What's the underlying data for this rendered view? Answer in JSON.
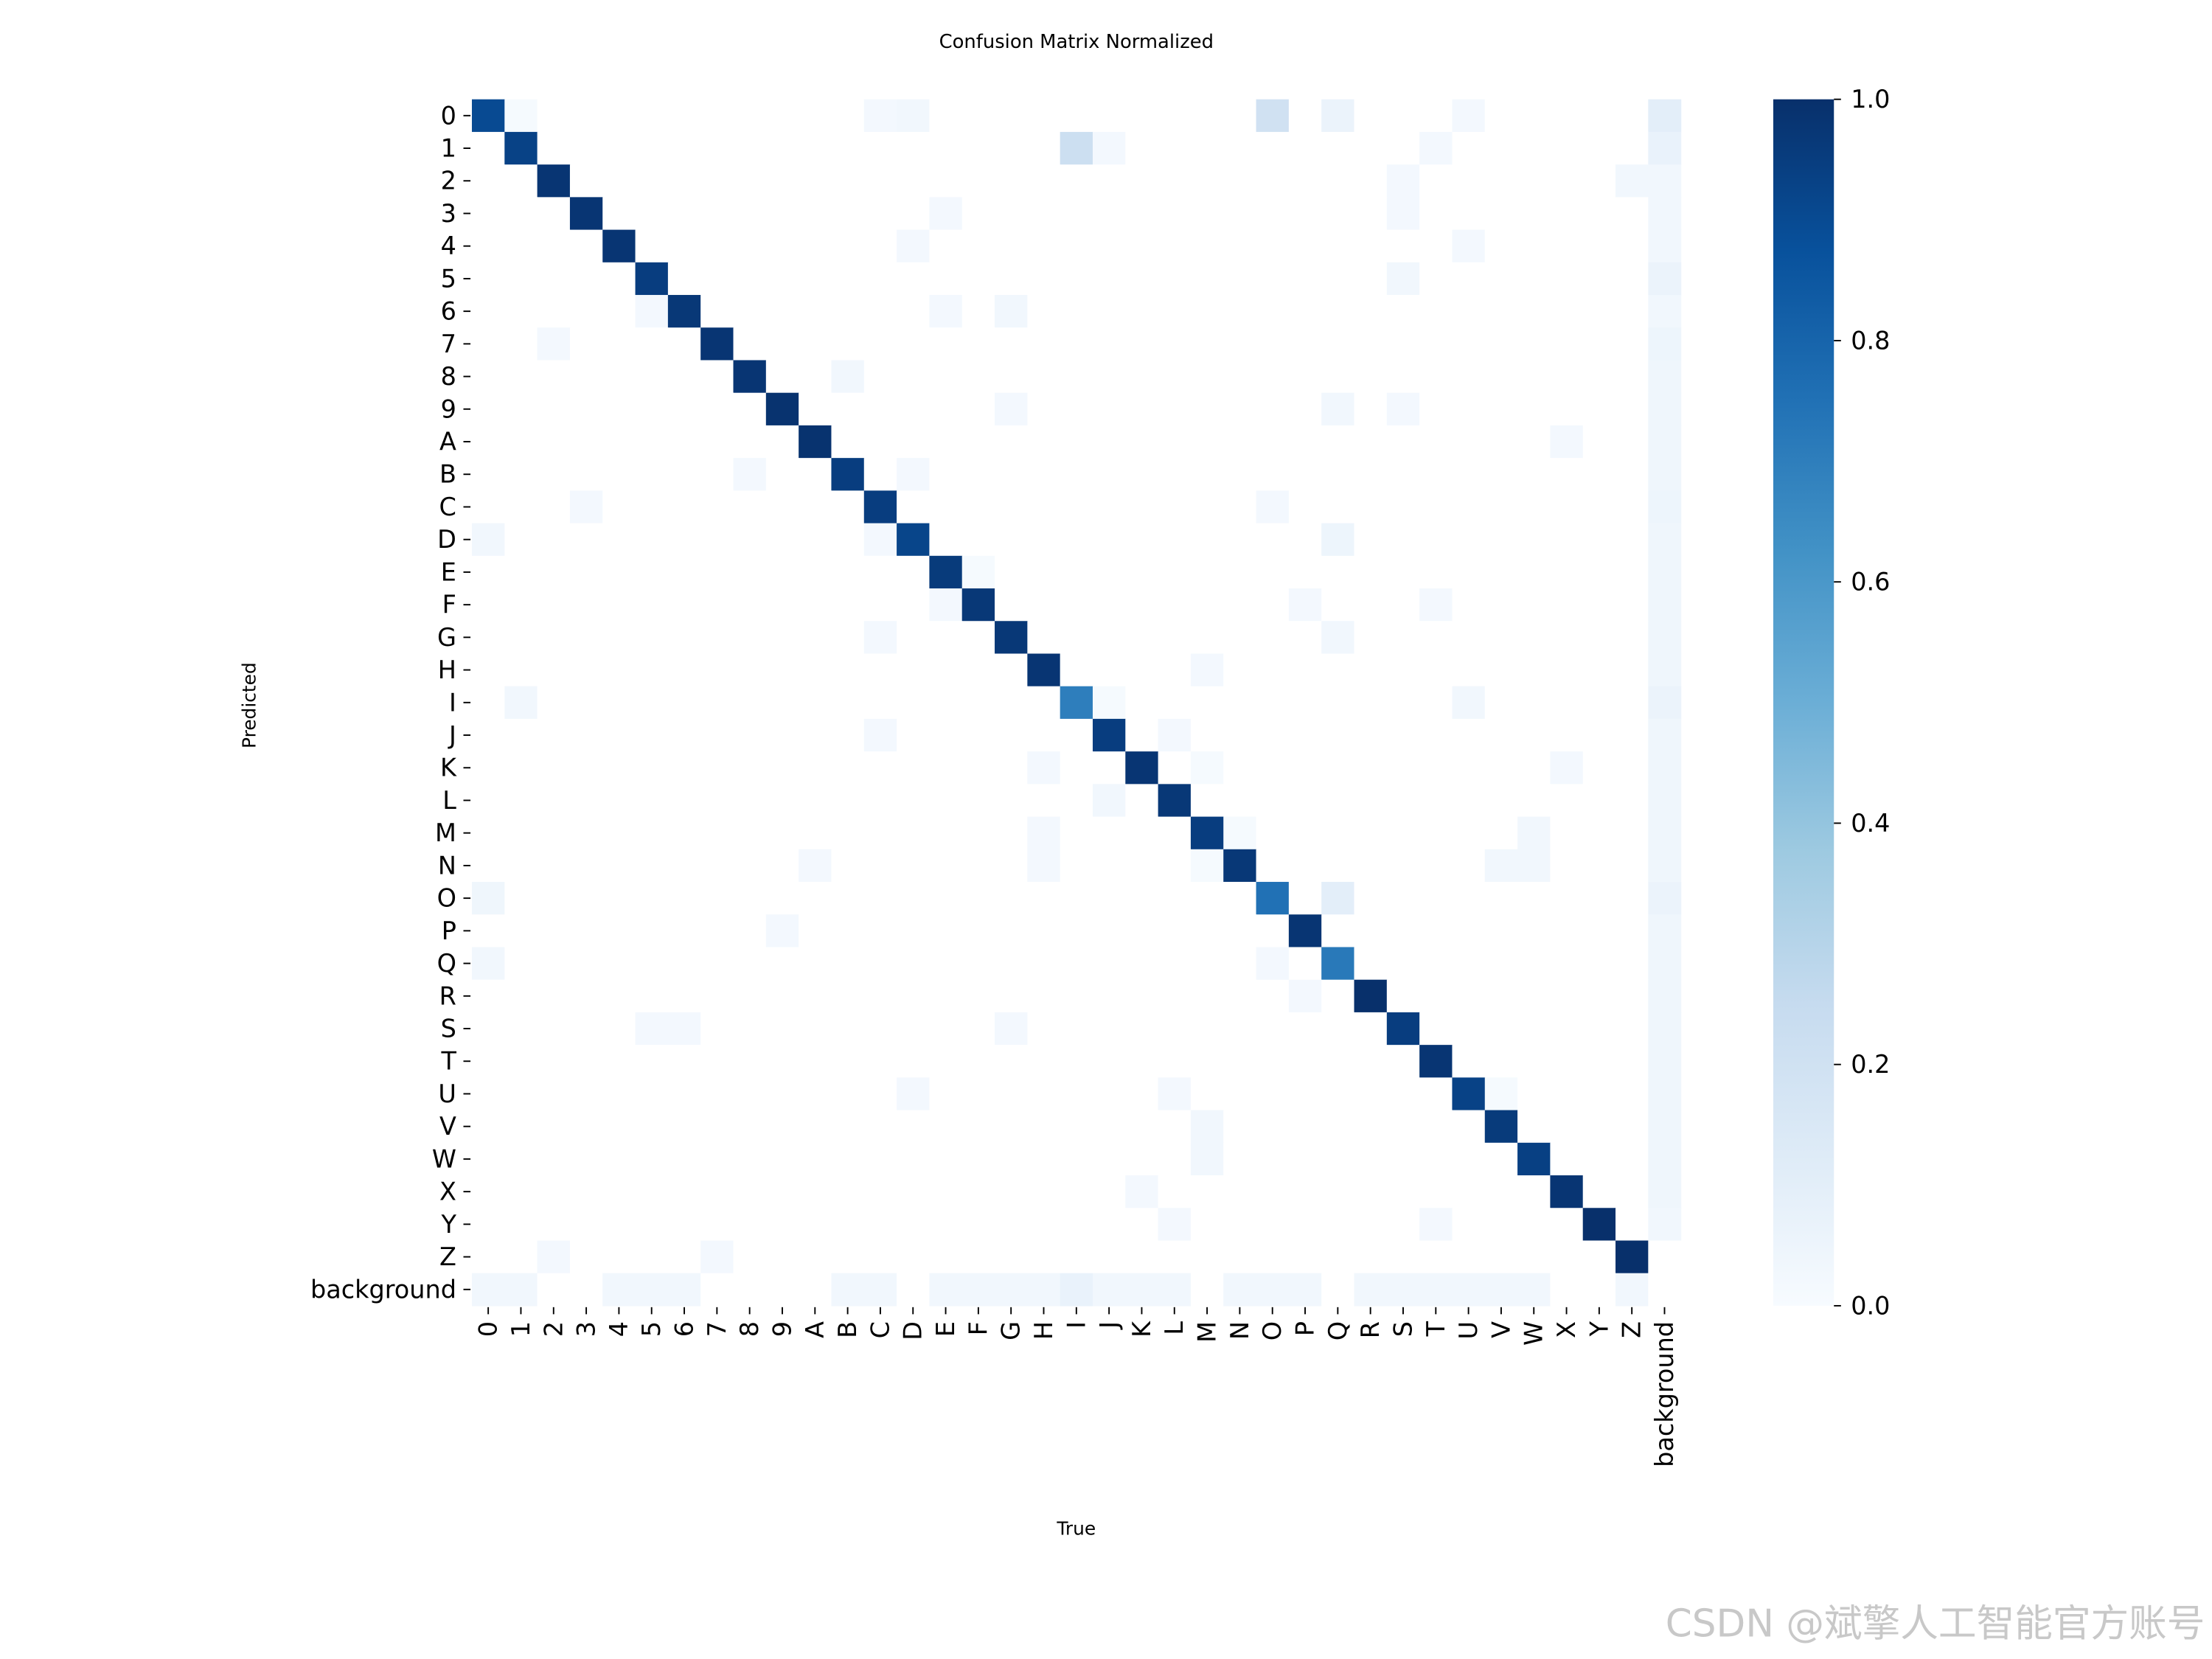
{
  "chart_data": {
    "type": "heatmap",
    "title": "Confusion Matrix Normalized",
    "x_label": "True",
    "y_label": "Predicted",
    "categories": [
      "0",
      "1",
      "2",
      "3",
      "4",
      "5",
      "6",
      "7",
      "8",
      "9",
      "A",
      "B",
      "C",
      "D",
      "E",
      "F",
      "G",
      "H",
      "I",
      "J",
      "K",
      "L",
      "M",
      "N",
      "O",
      "P",
      "Q",
      "R",
      "S",
      "T",
      "U",
      "V",
      "W",
      "X",
      "Y",
      "Z",
      "background"
    ],
    "values": [
      [
        0.9,
        0.01,
        0,
        0,
        0,
        0,
        0,
        0,
        0,
        0,
        0,
        0,
        0.02,
        0.03,
        0,
        0,
        0,
        0,
        0,
        0,
        0,
        0,
        0,
        0,
        0.2,
        0,
        0.06,
        0,
        0,
        0,
        0.02,
        0,
        0,
        0,
        0,
        0,
        0.1
      ],
      [
        0,
        0.93,
        0,
        0,
        0,
        0,
        0,
        0,
        0,
        0,
        0,
        0,
        0,
        0,
        0,
        0,
        0,
        0,
        0.22,
        0.02,
        0,
        0,
        0,
        0,
        0,
        0,
        0,
        0,
        0,
        0.02,
        0,
        0,
        0,
        0,
        0,
        0,
        0.07
      ],
      [
        0,
        0,
        0.98,
        0,
        0,
        0,
        0,
        0,
        0,
        0,
        0,
        0,
        0,
        0,
        0,
        0,
        0,
        0,
        0,
        0,
        0,
        0,
        0,
        0,
        0,
        0,
        0,
        0,
        0.02,
        0,
        0,
        0,
        0,
        0,
        0,
        0.03,
        0.03
      ],
      [
        0,
        0,
        0,
        0.98,
        0,
        0,
        0,
        0,
        0,
        0,
        0,
        0,
        0,
        0,
        0.02,
        0,
        0,
        0,
        0,
        0,
        0,
        0,
        0,
        0,
        0,
        0,
        0,
        0,
        0.02,
        0,
        0,
        0,
        0,
        0,
        0,
        0,
        0.03
      ],
      [
        0,
        0,
        0,
        0,
        0.98,
        0,
        0,
        0,
        0,
        0,
        0,
        0,
        0,
        0.02,
        0,
        0,
        0,
        0,
        0,
        0,
        0,
        0,
        0,
        0,
        0,
        0,
        0,
        0,
        0,
        0,
        0.02,
        0,
        0,
        0,
        0,
        0,
        0.03
      ],
      [
        0,
        0,
        0,
        0,
        0,
        0.95,
        0,
        0,
        0,
        0,
        0,
        0,
        0,
        0,
        0,
        0,
        0,
        0,
        0,
        0,
        0,
        0,
        0,
        0,
        0,
        0,
        0,
        0,
        0.03,
        0,
        0,
        0,
        0,
        0,
        0,
        0,
        0.06
      ],
      [
        0,
        0,
        0,
        0,
        0,
        0.02,
        0.97,
        0,
        0,
        0,
        0,
        0,
        0,
        0,
        0.02,
        0,
        0.03,
        0,
        0,
        0,
        0,
        0,
        0,
        0,
        0,
        0,
        0,
        0,
        0,
        0,
        0,
        0,
        0,
        0,
        0,
        0,
        0.03
      ],
      [
        0,
        0,
        0.02,
        0,
        0,
        0,
        0,
        0.98,
        0,
        0,
        0,
        0,
        0,
        0,
        0,
        0,
        0,
        0,
        0,
        0,
        0,
        0,
        0,
        0,
        0,
        0,
        0,
        0,
        0,
        0,
        0,
        0,
        0,
        0,
        0,
        0,
        0.05
      ],
      [
        0,
        0,
        0,
        0,
        0,
        0,
        0,
        0,
        0.98,
        0,
        0,
        0.03,
        0,
        0,
        0,
        0,
        0,
        0,
        0,
        0,
        0,
        0,
        0,
        0,
        0,
        0,
        0,
        0,
        0,
        0,
        0,
        0,
        0,
        0,
        0,
        0,
        0.04
      ],
      [
        0,
        0,
        0,
        0,
        0,
        0,
        0,
        0,
        0,
        0.99,
        0,
        0,
        0,
        0,
        0,
        0,
        0.02,
        0,
        0,
        0,
        0,
        0,
        0,
        0,
        0,
        0,
        0.03,
        0,
        0.02,
        0,
        0,
        0,
        0,
        0,
        0,
        0,
        0.04
      ],
      [
        0,
        0,
        0,
        0,
        0,
        0,
        0,
        0,
        0,
        0,
        0.99,
        0,
        0,
        0,
        0,
        0,
        0,
        0,
        0,
        0,
        0,
        0,
        0,
        0,
        0,
        0,
        0,
        0,
        0,
        0,
        0,
        0,
        0,
        0.02,
        0,
        0,
        0.04
      ],
      [
        0,
        0,
        0,
        0,
        0,
        0,
        0,
        0,
        0.02,
        0,
        0,
        0.95,
        0,
        0.02,
        0,
        0,
        0,
        0,
        0,
        0,
        0,
        0,
        0,
        0,
        0,
        0,
        0,
        0,
        0,
        0,
        0,
        0,
        0,
        0,
        0,
        0,
        0.04
      ],
      [
        0,
        0,
        0,
        0.02,
        0,
        0,
        0,
        0,
        0,
        0,
        0,
        0,
        0.95,
        0,
        0,
        0,
        0,
        0,
        0,
        0,
        0,
        0,
        0,
        0,
        0.02,
        0,
        0,
        0,
        0,
        0,
        0,
        0,
        0,
        0,
        0,
        0,
        0.05
      ],
      [
        0.03,
        0,
        0,
        0,
        0,
        0,
        0,
        0,
        0,
        0,
        0,
        0,
        0.02,
        0.92,
        0,
        0,
        0,
        0,
        0,
        0,
        0,
        0,
        0,
        0,
        0,
        0,
        0.05,
        0,
        0,
        0,
        0,
        0,
        0,
        0,
        0,
        0,
        0.04
      ],
      [
        0,
        0,
        0,
        0,
        0,
        0,
        0,
        0,
        0,
        0,
        0,
        0,
        0,
        0,
        0.96,
        0.01,
        0,
        0,
        0,
        0,
        0,
        0,
        0,
        0,
        0,
        0,
        0,
        0,
        0,
        0,
        0,
        0,
        0,
        0,
        0,
        0,
        0.04
      ],
      [
        0,
        0,
        0,
        0,
        0,
        0,
        0,
        0,
        0,
        0,
        0,
        0,
        0,
        0,
        0.02,
        0.97,
        0,
        0,
        0,
        0,
        0,
        0,
        0,
        0,
        0,
        0.02,
        0,
        0,
        0,
        0.02,
        0,
        0,
        0,
        0,
        0,
        0,
        0.04
      ],
      [
        0,
        0,
        0,
        0,
        0,
        0,
        0,
        0,
        0,
        0,
        0,
        0,
        0.02,
        0,
        0,
        0,
        0.97,
        0,
        0,
        0,
        0,
        0,
        0,
        0,
        0,
        0,
        0.03,
        0,
        0,
        0,
        0,
        0,
        0,
        0,
        0,
        0,
        0.04
      ],
      [
        0,
        0,
        0,
        0,
        0,
        0,
        0,
        0,
        0,
        0,
        0,
        0,
        0,
        0,
        0,
        0,
        0,
        0.98,
        0,
        0,
        0,
        0,
        0.02,
        0,
        0,
        0,
        0,
        0,
        0,
        0,
        0,
        0,
        0,
        0,
        0,
        0,
        0.04
      ],
      [
        0,
        0.03,
        0,
        0,
        0,
        0,
        0,
        0,
        0,
        0,
        0,
        0,
        0,
        0,
        0,
        0,
        0,
        0,
        0.7,
        0.01,
        0,
        0,
        0,
        0,
        0,
        0,
        0,
        0,
        0,
        0,
        0.03,
        0,
        0,
        0,
        0,
        0,
        0.06
      ],
      [
        0,
        0,
        0,
        0,
        0,
        0,
        0,
        0,
        0,
        0,
        0,
        0,
        0.02,
        0,
        0,
        0,
        0,
        0,
        0,
        0.95,
        0,
        0.02,
        0,
        0,
        0,
        0,
        0,
        0,
        0,
        0,
        0,
        0,
        0,
        0,
        0,
        0,
        0.04
      ],
      [
        0,
        0,
        0,
        0,
        0,
        0,
        0,
        0,
        0,
        0,
        0,
        0,
        0,
        0,
        0,
        0,
        0,
        0.02,
        0,
        0,
        0.98,
        0,
        0.01,
        0,
        0,
        0,
        0,
        0,
        0,
        0,
        0,
        0,
        0,
        0.02,
        0,
        0,
        0.04
      ],
      [
        0,
        0,
        0,
        0,
        0,
        0,
        0,
        0,
        0,
        0,
        0,
        0,
        0,
        0,
        0,
        0,
        0,
        0,
        0,
        0.03,
        0,
        0.97,
        0,
        0,
        0,
        0,
        0,
        0,
        0,
        0,
        0,
        0,
        0,
        0,
        0,
        0,
        0.04
      ],
      [
        0,
        0,
        0,
        0,
        0,
        0,
        0,
        0,
        0,
        0,
        0,
        0,
        0,
        0,
        0,
        0,
        0,
        0.02,
        0,
        0,
        0,
        0,
        0.95,
        0.01,
        0,
        0,
        0,
        0,
        0,
        0,
        0,
        0,
        0.03,
        0,
        0,
        0,
        0.04
      ],
      [
        0,
        0,
        0,
        0,
        0,
        0,
        0,
        0,
        0,
        0,
        0.02,
        0,
        0,
        0,
        0,
        0,
        0,
        0.02,
        0,
        0,
        0,
        0,
        0.01,
        0.97,
        0,
        0,
        0,
        0,
        0,
        0,
        0,
        0.03,
        0.03,
        0,
        0,
        0,
        0.04
      ],
      [
        0.04,
        0,
        0,
        0,
        0,
        0,
        0,
        0,
        0,
        0,
        0,
        0,
        0,
        0,
        0,
        0,
        0,
        0,
        0,
        0,
        0,
        0,
        0,
        0,
        0.75,
        0,
        0.1,
        0,
        0,
        0,
        0,
        0,
        0,
        0,
        0,
        0,
        0.06
      ],
      [
        0,
        0,
        0,
        0,
        0,
        0,
        0,
        0,
        0,
        0.02,
        0,
        0,
        0,
        0,
        0,
        0,
        0,
        0,
        0,
        0,
        0,
        0,
        0,
        0,
        0,
        0.98,
        0,
        0,
        0,
        0,
        0,
        0,
        0,
        0,
        0,
        0,
        0.04
      ],
      [
        0.03,
        0,
        0,
        0,
        0,
        0,
        0,
        0,
        0,
        0,
        0,
        0,
        0,
        0,
        0,
        0,
        0,
        0,
        0,
        0,
        0,
        0,
        0,
        0,
        0.02,
        0,
        0.72,
        0,
        0,
        0,
        0,
        0,
        0,
        0,
        0,
        0,
        0.04
      ],
      [
        0,
        0,
        0,
        0,
        0,
        0,
        0,
        0,
        0,
        0,
        0,
        0,
        0,
        0,
        0,
        0,
        0,
        0,
        0,
        0,
        0,
        0,
        0,
        0,
        0,
        0.02,
        0,
        1.0,
        0,
        0,
        0,
        0,
        0,
        0,
        0,
        0,
        0.04
      ],
      [
        0,
        0,
        0,
        0,
        0,
        0.02,
        0.02,
        0,
        0,
        0,
        0,
        0,
        0,
        0,
        0,
        0,
        0.02,
        0,
        0,
        0,
        0,
        0,
        0,
        0,
        0,
        0,
        0,
        0,
        0.95,
        0,
        0,
        0,
        0,
        0,
        0,
        0,
        0.04
      ],
      [
        0,
        0,
        0,
        0,
        0,
        0,
        0,
        0,
        0,
        0,
        0,
        0,
        0,
        0,
        0,
        0,
        0,
        0,
        0,
        0,
        0,
        0,
        0,
        0,
        0,
        0,
        0,
        0,
        0,
        0.98,
        0,
        0,
        0,
        0,
        0,
        0,
        0.04
      ],
      [
        0,
        0,
        0,
        0,
        0,
        0,
        0,
        0,
        0,
        0,
        0,
        0,
        0,
        0.02,
        0,
        0,
        0,
        0,
        0,
        0,
        0,
        0.02,
        0,
        0,
        0,
        0,
        0,
        0,
        0,
        0,
        0.93,
        0.01,
        0,
        0,
        0,
        0,
        0.04
      ],
      [
        0,
        0,
        0,
        0,
        0,
        0,
        0,
        0,
        0,
        0,
        0,
        0,
        0,
        0,
        0,
        0,
        0,
        0,
        0,
        0,
        0,
        0,
        0.03,
        0,
        0,
        0,
        0,
        0,
        0,
        0,
        0,
        0.96,
        0,
        0,
        0,
        0,
        0.04
      ],
      [
        0,
        0,
        0,
        0,
        0,
        0,
        0,
        0,
        0,
        0,
        0,
        0,
        0,
        0,
        0,
        0,
        0,
        0,
        0,
        0,
        0,
        0,
        0.03,
        0,
        0,
        0,
        0,
        0,
        0,
        0,
        0,
        0,
        0.94,
        0,
        0,
        0,
        0.04
      ],
      [
        0,
        0,
        0,
        0,
        0,
        0,
        0,
        0,
        0,
        0,
        0,
        0,
        0,
        0,
        0,
        0,
        0,
        0,
        0,
        0,
        0.02,
        0,
        0,
        0,
        0,
        0,
        0,
        0,
        0,
        0,
        0,
        0,
        0,
        0.98,
        0,
        0,
        0.04
      ],
      [
        0,
        0,
        0,
        0,
        0,
        0,
        0,
        0,
        0,
        0,
        0,
        0,
        0,
        0,
        0,
        0,
        0,
        0,
        0,
        0,
        0,
        0.02,
        0,
        0,
        0,
        0,
        0,
        0,
        0,
        0.02,
        0,
        0,
        0,
        0,
        1.0,
        0,
        0.03
      ],
      [
        0,
        0,
        0.02,
        0,
        0,
        0,
        0,
        0.02,
        0,
        0,
        0,
        0,
        0,
        0,
        0,
        0,
        0,
        0,
        0,
        0,
        0,
        0,
        0,
        0,
        0,
        0,
        0,
        0,
        0,
        0,
        0,
        0,
        0,
        0,
        0,
        1.0,
        0
      ],
      [
        0.03,
        0.03,
        0,
        0,
        0.03,
        0.03,
        0.03,
        0,
        0,
        0,
        0,
        0.03,
        0.03,
        0,
        0.03,
        0.03,
        0.03,
        0.03,
        0.07,
        0.03,
        0.03,
        0.03,
        0,
        0.03,
        0.03,
        0.03,
        0,
        0.03,
        0.03,
        0.03,
        0.03,
        0.03,
        0.03,
        0,
        0,
        0.03,
        0
      ]
    ],
    "zlim": [
      0,
      1
    ],
    "zticks": [
      {
        "value": 0,
        "label": "0.0"
      },
      {
        "value": 0.2,
        "label": "0.2"
      },
      {
        "value": 0.4,
        "label": "0.4"
      },
      {
        "value": 0.6,
        "label": "0.6"
      },
      {
        "value": 0.8,
        "label": "0.8"
      },
      {
        "value": 1,
        "label": "1.0"
      }
    ],
    "colormap": [
      "#f7fbff",
      "#deebf7",
      "#c6dbef",
      "#9ecae1",
      "#6baed6",
      "#4292c6",
      "#2171b5",
      "#08519c",
      "#08306b"
    ],
    "watermark": "CSDN @斌擎人工智能官方账号"
  }
}
